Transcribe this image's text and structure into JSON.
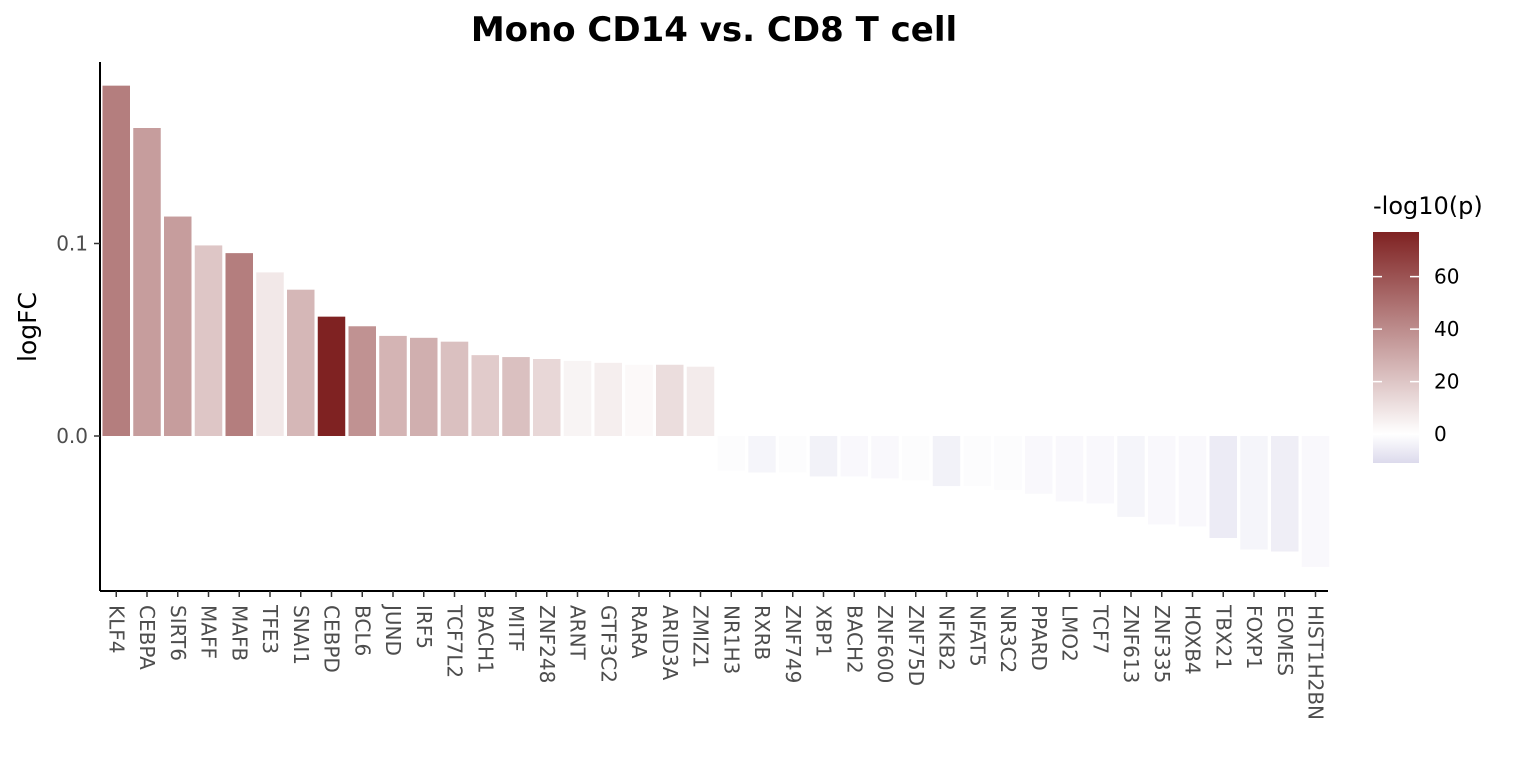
{
  "chart_data": {
    "type": "bar",
    "title": "Mono CD14 vs. CD8 T cell",
    "xlabel": "",
    "ylabel": "logFC",
    "ylim": [
      -0.08,
      0.19
    ],
    "y_ticks": [
      {
        "value": 0.0,
        "label": "0.0"
      },
      {
        "value": 0.1,
        "label": "0.1"
      }
    ],
    "grid": false,
    "legend": {
      "title": "-log10(p)",
      "position": "right",
      "range": [
        -11,
        77
      ],
      "ticks": [
        {
          "value": 0,
          "label": "0"
        },
        {
          "value": 20,
          "label": "20"
        },
        {
          "value": 40,
          "label": "40"
        },
        {
          "value": 60,
          "label": "60"
        }
      ],
      "colors": {
        "low": "#dcdaec",
        "mid": "#ffffff",
        "high": "#7f2222"
      }
    },
    "categories": [
      "KLF4",
      "CEBPA",
      "SIRT6",
      "MAFF",
      "MAFB",
      "TFE3",
      "SNAI1",
      "CEBPD",
      "BCL6",
      "JUND",
      "IRF5",
      "TCF7L2",
      "BACH1",
      "MITF",
      "ZNF248",
      "ARNT",
      "GTF3C2",
      "RARA",
      "ARID3A",
      "ZMIZ1",
      "NR1H3",
      "RXRB",
      "ZNF749",
      "XBP1",
      "BACH2",
      "ZNF600",
      "ZNF75D",
      "NFKB2",
      "NFAT5",
      "NR3C2",
      "PPARD",
      "LMO2",
      "TCF7",
      "ZNF613",
      "ZNF335",
      "HOXB4",
      "TBX21",
      "FOXP1",
      "EOMES",
      "HIST1H2BN"
    ],
    "values": [
      0.182,
      0.16,
      0.114,
      0.099,
      0.095,
      0.085,
      0.076,
      0.062,
      0.057,
      0.052,
      0.051,
      0.049,
      0.042,
      0.041,
      0.04,
      0.039,
      0.038,
      0.037,
      0.037,
      0.036,
      -0.018,
      -0.019,
      -0.019,
      -0.021,
      -0.021,
      -0.022,
      -0.023,
      -0.026,
      -0.026,
      -0.028,
      -0.03,
      -0.034,
      -0.035,
      -0.042,
      -0.046,
      -0.047,
      -0.053,
      -0.059,
      -0.06,
      -0.068
    ],
    "neg_log10_p": [
      45,
      34,
      34,
      20,
      45,
      8,
      25,
      77,
      38,
      26,
      28,
      22,
      18,
      22,
      14,
      4,
      6,
      2,
      12,
      7,
      -1,
      -3,
      -1,
      -4,
      -2,
      -2,
      -1,
      -4,
      -1,
      -1,
      -2,
      -2,
      -2,
      -3,
      -2,
      -2,
      -6,
      -3,
      -5,
      -2
    ]
  }
}
